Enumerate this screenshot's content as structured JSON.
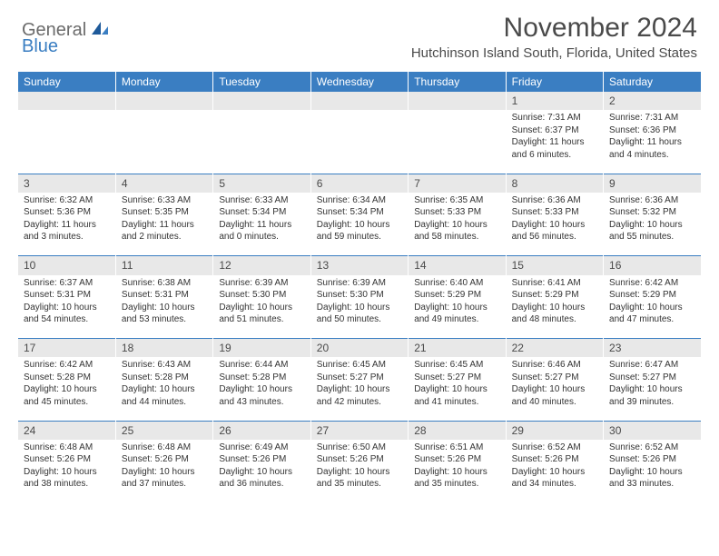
{
  "logo": {
    "general": "General",
    "blue": "Blue"
  },
  "header": {
    "month_title": "November 2024",
    "location": "Hutchinson Island South, Florida, United States"
  },
  "colors": {
    "header_bg": "#3a7ec2",
    "daynum_bg": "#e8e8e8",
    "divider": "#3a7ec2",
    "text": "#333333",
    "title_text": "#4a4a4a"
  },
  "daynames": [
    "Sunday",
    "Monday",
    "Tuesday",
    "Wednesday",
    "Thursday",
    "Friday",
    "Saturday"
  ],
  "weeks": [
    {
      "nums": [
        "",
        "",
        "",
        "",
        "",
        "1",
        "2"
      ],
      "cells": [
        {
          "sunrise": "",
          "sunset": "",
          "daylight": ""
        },
        {
          "sunrise": "",
          "sunset": "",
          "daylight": ""
        },
        {
          "sunrise": "",
          "sunset": "",
          "daylight": ""
        },
        {
          "sunrise": "",
          "sunset": "",
          "daylight": ""
        },
        {
          "sunrise": "",
          "sunset": "",
          "daylight": ""
        },
        {
          "sunrise": "Sunrise: 7:31 AM",
          "sunset": "Sunset: 6:37 PM",
          "daylight": "Daylight: 11 hours and 6 minutes."
        },
        {
          "sunrise": "Sunrise: 7:31 AM",
          "sunset": "Sunset: 6:36 PM",
          "daylight": "Daylight: 11 hours and 4 minutes."
        }
      ]
    },
    {
      "nums": [
        "3",
        "4",
        "5",
        "6",
        "7",
        "8",
        "9"
      ],
      "cells": [
        {
          "sunrise": "Sunrise: 6:32 AM",
          "sunset": "Sunset: 5:36 PM",
          "daylight": "Daylight: 11 hours and 3 minutes."
        },
        {
          "sunrise": "Sunrise: 6:33 AM",
          "sunset": "Sunset: 5:35 PM",
          "daylight": "Daylight: 11 hours and 2 minutes."
        },
        {
          "sunrise": "Sunrise: 6:33 AM",
          "sunset": "Sunset: 5:34 PM",
          "daylight": "Daylight: 11 hours and 0 minutes."
        },
        {
          "sunrise": "Sunrise: 6:34 AM",
          "sunset": "Sunset: 5:34 PM",
          "daylight": "Daylight: 10 hours and 59 minutes."
        },
        {
          "sunrise": "Sunrise: 6:35 AM",
          "sunset": "Sunset: 5:33 PM",
          "daylight": "Daylight: 10 hours and 58 minutes."
        },
        {
          "sunrise": "Sunrise: 6:36 AM",
          "sunset": "Sunset: 5:33 PM",
          "daylight": "Daylight: 10 hours and 56 minutes."
        },
        {
          "sunrise": "Sunrise: 6:36 AM",
          "sunset": "Sunset: 5:32 PM",
          "daylight": "Daylight: 10 hours and 55 minutes."
        }
      ]
    },
    {
      "nums": [
        "10",
        "11",
        "12",
        "13",
        "14",
        "15",
        "16"
      ],
      "cells": [
        {
          "sunrise": "Sunrise: 6:37 AM",
          "sunset": "Sunset: 5:31 PM",
          "daylight": "Daylight: 10 hours and 54 minutes."
        },
        {
          "sunrise": "Sunrise: 6:38 AM",
          "sunset": "Sunset: 5:31 PM",
          "daylight": "Daylight: 10 hours and 53 minutes."
        },
        {
          "sunrise": "Sunrise: 6:39 AM",
          "sunset": "Sunset: 5:30 PM",
          "daylight": "Daylight: 10 hours and 51 minutes."
        },
        {
          "sunrise": "Sunrise: 6:39 AM",
          "sunset": "Sunset: 5:30 PM",
          "daylight": "Daylight: 10 hours and 50 minutes."
        },
        {
          "sunrise": "Sunrise: 6:40 AM",
          "sunset": "Sunset: 5:29 PM",
          "daylight": "Daylight: 10 hours and 49 minutes."
        },
        {
          "sunrise": "Sunrise: 6:41 AM",
          "sunset": "Sunset: 5:29 PM",
          "daylight": "Daylight: 10 hours and 48 minutes."
        },
        {
          "sunrise": "Sunrise: 6:42 AM",
          "sunset": "Sunset: 5:29 PM",
          "daylight": "Daylight: 10 hours and 47 minutes."
        }
      ]
    },
    {
      "nums": [
        "17",
        "18",
        "19",
        "20",
        "21",
        "22",
        "23"
      ],
      "cells": [
        {
          "sunrise": "Sunrise: 6:42 AM",
          "sunset": "Sunset: 5:28 PM",
          "daylight": "Daylight: 10 hours and 45 minutes."
        },
        {
          "sunrise": "Sunrise: 6:43 AM",
          "sunset": "Sunset: 5:28 PM",
          "daylight": "Daylight: 10 hours and 44 minutes."
        },
        {
          "sunrise": "Sunrise: 6:44 AM",
          "sunset": "Sunset: 5:28 PM",
          "daylight": "Daylight: 10 hours and 43 minutes."
        },
        {
          "sunrise": "Sunrise: 6:45 AM",
          "sunset": "Sunset: 5:27 PM",
          "daylight": "Daylight: 10 hours and 42 minutes."
        },
        {
          "sunrise": "Sunrise: 6:45 AM",
          "sunset": "Sunset: 5:27 PM",
          "daylight": "Daylight: 10 hours and 41 minutes."
        },
        {
          "sunrise": "Sunrise: 6:46 AM",
          "sunset": "Sunset: 5:27 PM",
          "daylight": "Daylight: 10 hours and 40 minutes."
        },
        {
          "sunrise": "Sunrise: 6:47 AM",
          "sunset": "Sunset: 5:27 PM",
          "daylight": "Daylight: 10 hours and 39 minutes."
        }
      ]
    },
    {
      "nums": [
        "24",
        "25",
        "26",
        "27",
        "28",
        "29",
        "30"
      ],
      "cells": [
        {
          "sunrise": "Sunrise: 6:48 AM",
          "sunset": "Sunset: 5:26 PM",
          "daylight": "Daylight: 10 hours and 38 minutes."
        },
        {
          "sunrise": "Sunrise: 6:48 AM",
          "sunset": "Sunset: 5:26 PM",
          "daylight": "Daylight: 10 hours and 37 minutes."
        },
        {
          "sunrise": "Sunrise: 6:49 AM",
          "sunset": "Sunset: 5:26 PM",
          "daylight": "Daylight: 10 hours and 36 minutes."
        },
        {
          "sunrise": "Sunrise: 6:50 AM",
          "sunset": "Sunset: 5:26 PM",
          "daylight": "Daylight: 10 hours and 35 minutes."
        },
        {
          "sunrise": "Sunrise: 6:51 AM",
          "sunset": "Sunset: 5:26 PM",
          "daylight": "Daylight: 10 hours and 35 minutes."
        },
        {
          "sunrise": "Sunrise: 6:52 AM",
          "sunset": "Sunset: 5:26 PM",
          "daylight": "Daylight: 10 hours and 34 minutes."
        },
        {
          "sunrise": "Sunrise: 6:52 AM",
          "sunset": "Sunset: 5:26 PM",
          "daylight": "Daylight: 10 hours and 33 minutes."
        }
      ]
    }
  ]
}
